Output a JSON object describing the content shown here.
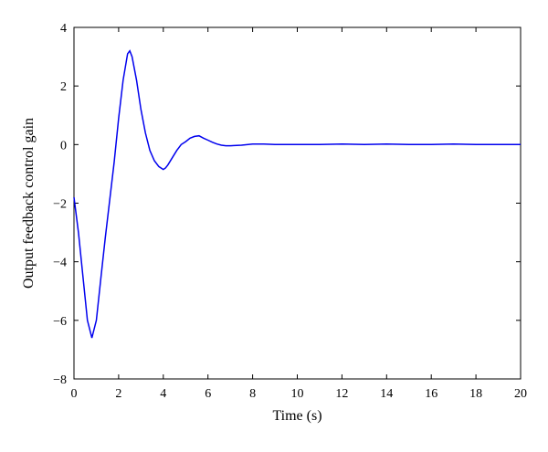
{
  "chart_data": {
    "type": "line",
    "title": "",
    "xlabel": "Time (s)",
    "ylabel": "Output feedback control gain",
    "xlim": [
      0,
      20
    ],
    "ylim": [
      -8,
      4
    ],
    "xticks": [
      0,
      2,
      4,
      6,
      8,
      10,
      12,
      14,
      16,
      18,
      20
    ],
    "yticks": [
      -8,
      -6,
      -4,
      -2,
      0,
      2,
      4
    ],
    "grid": false,
    "legend": "none",
    "line_color": "#0000ee",
    "series": [
      {
        "x": [
          0,
          0.2,
          0.4,
          0.6,
          0.8,
          1.0,
          1.2,
          1.4,
          1.6,
          1.8,
          2.0,
          2.2,
          2.4,
          2.5,
          2.6,
          2.8,
          3.0,
          3.2,
          3.4,
          3.6,
          3.8,
          4.0,
          4.1,
          4.2,
          4.4,
          4.6,
          4.8,
          5.0,
          5.2,
          5.4,
          5.6,
          5.8,
          6.0,
          6.2,
          6.4,
          6.6,
          6.8,
          7.0,
          7.5,
          8.0,
          8.5,
          9.0,
          10.0,
          11.0,
          12.0,
          13.0,
          14.0,
          15.0,
          16.0,
          17.0,
          18.0,
          19.0,
          20.0
        ],
        "values": [
          -1.8,
          -3.0,
          -4.5,
          -6.0,
          -6.6,
          -6.0,
          -4.6,
          -3.2,
          -1.9,
          -0.6,
          0.9,
          2.2,
          3.1,
          3.2,
          3.0,
          2.2,
          1.2,
          0.4,
          -0.2,
          -0.55,
          -0.75,
          -0.85,
          -0.8,
          -0.7,
          -0.45,
          -0.2,
          0.0,
          0.1,
          0.22,
          0.28,
          0.3,
          0.22,
          0.15,
          0.08,
          0.02,
          -0.02,
          -0.04,
          -0.04,
          -0.02,
          0.02,
          0.02,
          0.0,
          0.0,
          0.0,
          0.02,
          0.0,
          0.02,
          0.0,
          0.0,
          0.02,
          0.0,
          0.0,
          0.0
        ]
      }
    ]
  }
}
